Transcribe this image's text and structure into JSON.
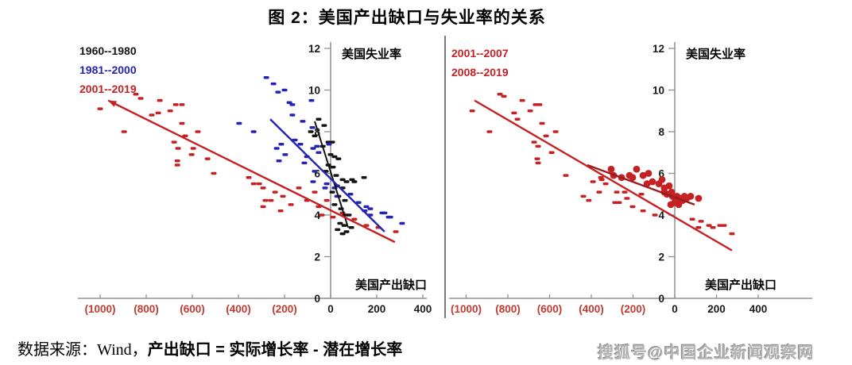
{
  "title": "图 2：美国产出缺口与失业率的关系",
  "caption": {
    "source_prefix": "数据来源：Wind，",
    "formula": "产出缺口 = 实际增长率 - 潜在增长率"
  },
  "watermark": "搜狐号@中国企业新闻观察网",
  "colors": {
    "red": "#c52124",
    "dark_red": "#9a1b1b",
    "blue": "#2424b4",
    "black": "#141414",
    "axis_gray": "#909090",
    "tick_red": "#c23a31",
    "tick_black": "#1a1a1a",
    "divider_gray": "#7a7a7a",
    "watermark_gray": "#b3b3b3"
  },
  "chart_data": [
    {
      "type": "scatter",
      "ylabel": "美国失业率",
      "xlabel": "美国产出缺口",
      "xlim": [
        -1100,
        410
      ],
      "ylim": [
        0,
        12
      ],
      "grid": false,
      "legend_position": "top-left",
      "x_ticks": [
        {
          "label": "(1000)",
          "value": -1000,
          "negative": true
        },
        {
          "label": "(800)",
          "value": -800,
          "negative": true
        },
        {
          "label": "(600)",
          "value": -600,
          "negative": true
        },
        {
          "label": "(400)",
          "value": -400,
          "negative": true
        },
        {
          "label": "(200)",
          "value": -200,
          "negative": true
        },
        {
          "label": "0",
          "value": 0,
          "negative": false
        },
        {
          "label": "200",
          "value": 200,
          "negative": false
        },
        {
          "label": "400",
          "value": 400,
          "negative": false
        }
      ],
      "y_ticks": [
        0,
        2,
        4,
        6,
        8,
        10,
        12
      ],
      "series": [
        {
          "name": "1960--1980",
          "color_key": "black",
          "marker": "dash",
          "points": [
            [
              -52,
              8.6
            ],
            [
              -28,
              8.3
            ],
            [
              -86,
              8.0
            ],
            [
              -69,
              7.8
            ],
            [
              -10,
              7.5
            ],
            [
              7,
              7.5
            ],
            [
              -34,
              7.3
            ],
            [
              0,
              6.9
            ],
            [
              17,
              6.8
            ],
            [
              34,
              6.7
            ],
            [
              -10,
              6.4
            ],
            [
              10,
              6.3
            ],
            [
              24,
              5.9
            ],
            [
              -21,
              6.1
            ],
            [
              103,
              5.6
            ],
            [
              145,
              5.8
            ],
            [
              52,
              5.7
            ],
            [
              69,
              5.6
            ],
            [
              93,
              5.7
            ],
            [
              28,
              5.4
            ],
            [
              52,
              5.3
            ],
            [
              7,
              5.1
            ],
            [
              34,
              4.9
            ],
            [
              62,
              4.7
            ],
            [
              17,
              4.5
            ],
            [
              45,
              4.3
            ],
            [
              62,
              4.0
            ],
            [
              79,
              4.0
            ],
            [
              41,
              3.6
            ],
            [
              59,
              3.5
            ],
            [
              69,
              3.2
            ],
            [
              52,
              3.1
            ],
            [
              90,
              3.4
            ],
            [
              30,
              3.3
            ]
          ],
          "trend": {
            "x1": -69,
            "y1": 8.5,
            "x2": 76,
            "y2": 3.4
          }
        },
        {
          "name": "1981--2000",
          "color_key": "blue",
          "marker": "dash",
          "points": [
            [
              -279,
              10.6
            ],
            [
              -248,
              10.3
            ],
            [
              -228,
              9.9
            ],
            [
              -200,
              10.0
            ],
            [
              -179,
              9.4
            ],
            [
              -166,
              9.3
            ],
            [
              -83,
              9.5
            ],
            [
              -166,
              8.8
            ],
            [
              -121,
              8.5
            ],
            [
              -79,
              8.2
            ],
            [
              -334,
              8.0
            ],
            [
              -397,
              8.4
            ],
            [
              -214,
              7.4
            ],
            [
              -234,
              7.2
            ],
            [
              -197,
              6.9
            ],
            [
              -224,
              6.6
            ],
            [
              -155,
              7.6
            ],
            [
              -131,
              7.4
            ],
            [
              -103,
              6.8
            ],
            [
              -52,
              7.0
            ],
            [
              -114,
              6.5
            ],
            [
              -76,
              7.2
            ],
            [
              -59,
              7.3
            ],
            [
              -7,
              7.4
            ],
            [
              -69,
              6.1
            ],
            [
              -76,
              5.6
            ],
            [
              -17,
              5.5
            ],
            [
              -24,
              5.3
            ],
            [
              17,
              5.3
            ],
            [
              28,
              4.9
            ],
            [
              86,
              5.0
            ],
            [
              121,
              4.6
            ],
            [
              148,
              4.2
            ],
            [
              172,
              4.3
            ],
            [
              224,
              4.1
            ],
            [
              259,
              3.9
            ],
            [
              155,
              4.4
            ],
            [
              172,
              4.0
            ],
            [
              234,
              4.1
            ],
            [
              252,
              3.9
            ],
            [
              310,
              3.6
            ]
          ],
          "trend": {
            "x1": -262,
            "y1": 8.6,
            "x2": 234,
            "y2": 3.2
          }
        },
        {
          "name": "2001--2019",
          "color_key": "red",
          "marker": "dash",
          "points": [
            [
              -1000,
              9.1
            ],
            [
              -845,
              9.8
            ],
            [
              -824,
              9.6
            ],
            [
              -741,
              9.5
            ],
            [
              -672,
              9.3
            ],
            [
              -645,
              9.3
            ],
            [
              -776,
              8.8
            ],
            [
              -748,
              8.9
            ],
            [
              -696,
              9.0
            ],
            [
              -896,
              8.0
            ],
            [
              -645,
              8.4
            ],
            [
              -576,
              8.0
            ],
            [
              -631,
              7.8
            ],
            [
              -679,
              7.5
            ],
            [
              -662,
              7.2
            ],
            [
              -596,
              7.2
            ],
            [
              -603,
              6.9
            ],
            [
              -534,
              6.7
            ],
            [
              -665,
              6.6
            ],
            [
              -665,
              6.4
            ],
            [
              -507,
              6.0
            ],
            [
              -355,
              5.8
            ],
            [
              -334,
              5.5
            ],
            [
              -310,
              5.5
            ],
            [
              -283,
              4.7
            ],
            [
              -293,
              5.3
            ],
            [
              -241,
              5.1
            ],
            [
              -207,
              4.9
            ],
            [
              -259,
              4.7
            ],
            [
              -172,
              4.5
            ],
            [
              -293,
              4.4
            ],
            [
              -217,
              4.2
            ],
            [
              -138,
              5.3
            ],
            [
              -69,
              5.1
            ],
            [
              -103,
              4.7
            ],
            [
              -52,
              4.4
            ],
            [
              -17,
              4.7
            ],
            [
              52,
              4.1
            ],
            [
              103,
              3.8
            ],
            [
              155,
              3.5
            ],
            [
              207,
              3.4
            ],
            [
              283,
              3.2
            ],
            [
              -38,
              4.0
            ],
            [
              10,
              3.9
            ]
          ],
          "trend": {
            "x1": -965,
            "y1": 9.5,
            "x2": 279,
            "y2": 2.7,
            "arrow_start": true
          }
        }
      ]
    },
    {
      "type": "scatter",
      "ylabel": "美国失业率",
      "xlabel": "美国产出缺口",
      "xlim": [
        -1100,
        650
      ],
      "ylim": [
        0,
        12
      ],
      "grid": false,
      "legend_position": "top-left",
      "x_ticks": [
        {
          "label": "(1000)",
          "value": -1000,
          "negative": true
        },
        {
          "label": "(800)",
          "value": -800,
          "negative": true
        },
        {
          "label": "(600)",
          "value": -600,
          "negative": true
        },
        {
          "label": "(400)",
          "value": -400,
          "negative": true
        },
        {
          "label": "(200)",
          "value": -200,
          "negative": true
        },
        {
          "label": "0",
          "value": 0,
          "negative": false
        },
        {
          "label": "200",
          "value": 200,
          "negative": false
        },
        {
          "label": "400",
          "value": 400,
          "negative": false
        }
      ],
      "y_ticks": [
        0,
        2,
        4,
        6,
        8,
        10,
        12
      ],
      "series": [
        {
          "name": "2001--2007",
          "color_key": "red",
          "marker": "dot",
          "points": [
            [
              -305,
              6.2
            ],
            [
              -293,
              5.9
            ],
            [
              -255,
              5.8
            ],
            [
              -183,
              6.2
            ],
            [
              -217,
              5.9
            ],
            [
              -202,
              5.8
            ],
            [
              -152,
              5.9
            ],
            [
              -126,
              6.0
            ],
            [
              -133,
              5.5
            ],
            [
              -107,
              5.6
            ],
            [
              -76,
              5.5
            ],
            [
              -61,
              5.7
            ],
            [
              -50,
              5.3
            ],
            [
              -50,
              5.1
            ],
            [
              -38,
              5.0
            ],
            [
              -27,
              5.4
            ],
            [
              -15,
              5.1
            ],
            [
              -11,
              4.9
            ],
            [
              0,
              4.8
            ],
            [
              11,
              4.9
            ],
            [
              19,
              4.8
            ],
            [
              30,
              4.8
            ],
            [
              38,
              4.7
            ],
            [
              46,
              4.9
            ],
            [
              57,
              4.8
            ],
            [
              76,
              4.9
            ],
            [
              -19,
              4.5
            ],
            [
              0,
              4.6
            ],
            [
              19,
              4.5
            ],
            [
              114,
              4.8
            ]
          ],
          "trend": {
            "x1": -419,
            "y1": 6.4,
            "x2": 95,
            "y2": 4.5,
            "color_key": "dark_red"
          }
        },
        {
          "name": "2008--2019",
          "color_key": "red",
          "marker": "dash",
          "points": [
            [
              -971,
              9.0
            ],
            [
              -838,
              9.8
            ],
            [
              -819,
              9.7
            ],
            [
              -731,
              9.5
            ],
            [
              -667,
              9.3
            ],
            [
              -648,
              9.3
            ],
            [
              -770,
              8.9
            ],
            [
              -693,
              9.0
            ],
            [
              -754,
              8.6
            ],
            [
              -888,
              8.0
            ],
            [
              -636,
              8.4
            ],
            [
              -571,
              8.0
            ],
            [
              -674,
              7.5
            ],
            [
              -617,
              7.8
            ],
            [
              -655,
              7.3
            ],
            [
              -590,
              7.0
            ],
            [
              -659,
              6.7
            ],
            [
              -655,
              6.5
            ],
            [
              -522,
              5.9
            ],
            [
              -438,
              4.9
            ],
            [
              -412,
              4.7
            ],
            [
              -392,
              5.6
            ],
            [
              -354,
              5.8
            ],
            [
              -350,
              5.7
            ],
            [
              -331,
              5.5
            ],
            [
              -362,
              5.1
            ],
            [
              -278,
              5.1
            ],
            [
              -240,
              5.1
            ],
            [
              -229,
              4.8
            ],
            [
              -267,
              4.6
            ],
            [
              -286,
              4.6
            ],
            [
              -202,
              4.4
            ],
            [
              -160,
              5.0
            ],
            [
              -152,
              4.2
            ],
            [
              -95,
              4.0
            ],
            [
              84,
              3.8
            ],
            [
              114,
              3.4
            ],
            [
              126,
              3.7
            ],
            [
              164,
              3.5
            ],
            [
              183,
              3.4
            ],
            [
              217,
              3.5
            ],
            [
              236,
              3.5
            ],
            [
              274,
              3.1
            ]
          ],
          "trend": {
            "x1": -960,
            "y1": 9.5,
            "x2": 274,
            "y2": 2.3
          }
        }
      ]
    }
  ]
}
